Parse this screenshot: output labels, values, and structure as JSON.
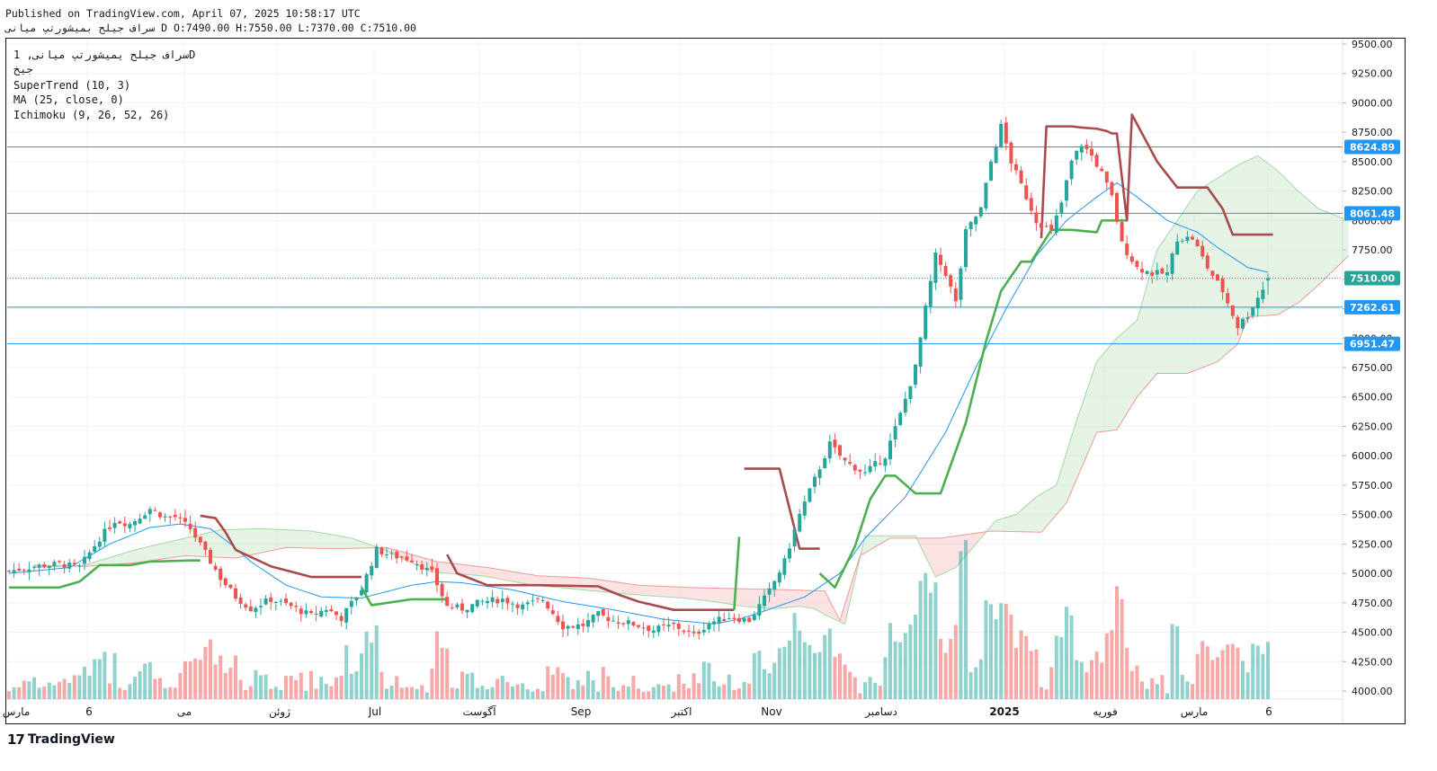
{
  "header": {
    "published": "Published on TradingView.com, April 07, 2025 10:58:17 UTC",
    "symbol_line": "سراف جیلح بمیشورتپ میانی D O:7490.00 H:7550.00 L:7370.00 C:7510.00"
  },
  "legend": {
    "symbol": "سراف جیلح یمیشورتپ میانی, 1D",
    "sub": "جیخ",
    "supertrend": "SuperTrend (10, 3)",
    "ma": "MA (25, close, 0)",
    "ichimoku": "Ichimoku (9, 26, 52, 26)"
  },
  "brand": {
    "logo": "17",
    "name": "TradingView"
  },
  "colors": {
    "up": "#26a69a",
    "down": "#ef5350",
    "supertrend_up": "#4caf50",
    "supertrend_down": "#a94a4d",
    "ma": "#2196f3",
    "hline": "#2196f3",
    "cloud_green": "#a5d6a7",
    "cloud_red": "#ef9a9a"
  },
  "chart_data": {
    "type": "candlestick",
    "timeframe": "1D",
    "last": {
      "open": 7490.0,
      "high": 7550.0,
      "low": 7370.0,
      "close": 7510.0
    },
    "ylim": [
      3900,
      9600
    ],
    "y_ticks": [
      "9500.00",
      "9250.00",
      "9000.00",
      "8750.00",
      "8500.00",
      "8250.00",
      "8000.00",
      "7750.00",
      "7500.00",
      "7250.00",
      "7000.00",
      "6750.00",
      "6500.00",
      "6250.00",
      "6000.00",
      "5750.00",
      "5500.00",
      "5250.00",
      "5000.00",
      "4750.00",
      "4500.00",
      "4250.00",
      "4000.00"
    ],
    "x_ticks": [
      "مارس",
      "6",
      "می",
      "ژوئن",
      "Jul",
      "آگوست",
      "Sep",
      "اکتبر",
      "Nov",
      "دسامبر",
      "2025",
      "فوریه",
      "مارس",
      "6"
    ],
    "bold_x_tick": "2025",
    "price_labels": [
      {
        "value": 8624.89,
        "text": "8624.89"
      },
      {
        "value": 8061.48,
        "text": "8061.48"
      },
      {
        "value": 7510.0,
        "text": "7510.00",
        "current": true
      },
      {
        "value": 7262.61,
        "text": "7262.61"
      },
      {
        "value": 6951.47,
        "text": "6951.47"
      }
    ],
    "horizontal_lines": [
      8624.89,
      8061.48,
      7262.61,
      6951.47
    ],
    "close_anchors": [
      [
        0,
        5020
      ],
      [
        5,
        5060
      ],
      [
        10,
        5080
      ],
      [
        14,
        5050
      ],
      [
        18,
        5300
      ],
      [
        21,
        5450
      ],
      [
        24,
        5420
      ],
      [
        28,
        5550
      ],
      [
        31,
        5480
      ],
      [
        33,
        5480
      ],
      [
        36,
        5380
      ],
      [
        38,
        5240
      ],
      [
        40,
        5100
      ],
      [
        42,
        4960
      ],
      [
        45,
        4800
      ],
      [
        48,
        4700
      ],
      [
        52,
        4780
      ],
      [
        56,
        4720
      ],
      [
        60,
        4640
      ],
      [
        63,
        4700
      ],
      [
        66,
        4620
      ],
      [
        70,
        4870
      ],
      [
        73,
        5200
      ],
      [
        76,
        5150
      ],
      [
        80,
        5120
      ],
      [
        84,
        5000
      ],
      [
        87,
        4720
      ],
      [
        90,
        4700
      ],
      [
        94,
        4760
      ],
      [
        98,
        4780
      ],
      [
        102,
        4720
      ],
      [
        106,
        4780
      ],
      [
        110,
        4550
      ],
      [
        114,
        4560
      ],
      [
        117,
        4650
      ],
      [
        120,
        4600
      ],
      [
        124,
        4570
      ],
      [
        128,
        4520
      ],
      [
        132,
        4560
      ],
      [
        136,
        4470
      ],
      [
        139,
        4580
      ],
      [
        143,
        4630
      ],
      [
        147,
        4600
      ],
      [
        151,
        4850
      ],
      [
        154,
        5100
      ],
      [
        157,
        5500
      ],
      [
        160,
        5800
      ],
      [
        163,
        6100
      ],
      [
        166,
        5950
      ],
      [
        170,
        5850
      ],
      [
        174,
        6000
      ],
      [
        177,
        6350
      ],
      [
        180,
        6750
      ],
      [
        182,
        7250
      ],
      [
        184,
        7700
      ],
      [
        186,
        7550
      ],
      [
        188,
        7300
      ],
      [
        190,
        7900
      ],
      [
        193,
        8100
      ],
      [
        195,
        8500
      ],
      [
        197,
        8800
      ],
      [
        199,
        8500
      ],
      [
        201,
        8300
      ],
      [
        204,
        8000
      ],
      [
        207,
        7900
      ],
      [
        209,
        8150
      ],
      [
        211,
        8500
      ],
      [
        213,
        8650
      ],
      [
        215,
        8550
      ],
      [
        217,
        8400
      ],
      [
        219,
        8200
      ],
      [
        221,
        7800
      ],
      [
        224,
        7600
      ],
      [
        227,
        7550
      ],
      [
        230,
        7550
      ],
      [
        232,
        7850
      ],
      [
        235,
        7850
      ],
      [
        238,
        7600
      ],
      [
        241,
        7400
      ],
      [
        244,
        7100
      ],
      [
        246,
        7200
      ],
      [
        249,
        7420
      ],
      [
        250,
        7510
      ]
    ],
    "supertrend_segments": [
      {
        "dir": "up",
        "points": [
          [
            0,
            4880
          ],
          [
            10,
            4880
          ],
          [
            14,
            4930
          ],
          [
            18,
            5070
          ],
          [
            24,
            5070
          ],
          [
            28,
            5100
          ],
          [
            36,
            5110
          ],
          [
            38,
            5110
          ]
        ]
      },
      {
        "dir": "down",
        "points": [
          [
            38,
            5490
          ],
          [
            41,
            5470
          ],
          [
            43,
            5350
          ],
          [
            45,
            5200
          ],
          [
            49,
            5120
          ],
          [
            52,
            5060
          ],
          [
            60,
            4970
          ],
          [
            70,
            4970
          ]
        ]
      },
      {
        "dir": "up",
        "points": [
          [
            70,
            4880
          ],
          [
            72,
            4730
          ],
          [
            80,
            4780
          ],
          [
            87,
            4780
          ]
        ]
      },
      {
        "dir": "down",
        "points": [
          [
            87,
            5160
          ],
          [
            89,
            5000
          ],
          [
            95,
            4900
          ],
          [
            105,
            4900
          ],
          [
            117,
            4890
          ],
          [
            121,
            4820
          ],
          [
            125,
            4760
          ],
          [
            132,
            4690
          ],
          [
            144,
            4690
          ]
        ]
      },
      {
        "dir": "up",
        "points": [
          [
            144,
            4690
          ],
          [
            145,
            5310
          ]
        ]
      },
      {
        "dir": "down",
        "points": [
          [
            146,
            5890
          ],
          [
            153,
            5890
          ],
          [
            157,
            5210
          ],
          [
            161,
            5210
          ]
        ]
      },
      {
        "dir": "up",
        "points": [
          [
            161,
            5000
          ],
          [
            164,
            4880
          ],
          [
            168,
            5230
          ],
          [
            171,
            5630
          ],
          [
            174,
            5830
          ],
          [
            176,
            5830
          ],
          [
            180,
            5680
          ],
          [
            185,
            5680
          ],
          [
            190,
            6280
          ],
          [
            194,
            6970
          ],
          [
            197,
            7400
          ],
          [
            201,
            7650
          ],
          [
            203,
            7650
          ],
          [
            207,
            7920
          ],
          [
            211,
            7920
          ],
          [
            216,
            7900
          ],
          [
            217,
            8000
          ],
          [
            222,
            8000
          ]
        ]
      },
      {
        "dir": "down",
        "points": [
          [
            205,
            7850
          ],
          [
            206,
            8800
          ],
          [
            211,
            8800
          ],
          [
            213,
            8790
          ],
          [
            216,
            8780
          ],
          [
            218,
            8760
          ],
          [
            219,
            8740
          ],
          [
            220,
            8740
          ],
          [
            222,
            8000
          ],
          [
            223,
            8900
          ],
          [
            228,
            8500
          ],
          [
            232,
            8280
          ],
          [
            238,
            8280
          ],
          [
            241,
            8100
          ],
          [
            243,
            7880
          ],
          [
            251,
            7880
          ]
        ]
      }
    ],
    "ma_anchors": [
      [
        0,
        5000
      ],
      [
        12,
        5050
      ],
      [
        20,
        5250
      ],
      [
        28,
        5390
      ],
      [
        34,
        5420
      ],
      [
        40,
        5380
      ],
      [
        44,
        5250
      ],
      [
        48,
        5100
      ],
      [
        55,
        4900
      ],
      [
        62,
        4800
      ],
      [
        70,
        4790
      ],
      [
        80,
        4900
      ],
      [
        85,
        4930
      ],
      [
        90,
        4920
      ],
      [
        100,
        4860
      ],
      [
        110,
        4760
      ],
      [
        120,
        4690
      ],
      [
        130,
        4610
      ],
      [
        140,
        4570
      ],
      [
        145,
        4610
      ],
      [
        150,
        4680
      ],
      [
        158,
        4800
      ],
      [
        165,
        5000
      ],
      [
        170,
        5300
      ],
      [
        178,
        5650
      ],
      [
        186,
        6200
      ],
      [
        192,
        6750
      ],
      [
        198,
        7250
      ],
      [
        204,
        7700
      ],
      [
        210,
        8000
      ],
      [
        216,
        8200
      ],
      [
        220,
        8320
      ],
      [
        224,
        8200
      ],
      [
        230,
        8000
      ],
      [
        236,
        7900
      ],
      [
        240,
        7770
      ],
      [
        246,
        7600
      ],
      [
        250,
        7560
      ]
    ],
    "cloud_span_a": [
      [
        5,
        5050
      ],
      [
        15,
        5070
      ],
      [
        25,
        5200
      ],
      [
        35,
        5300
      ],
      [
        42,
        5370
      ],
      [
        50,
        5380
      ],
      [
        60,
        5360
      ],
      [
        68,
        5300
      ],
      [
        74,
        5210
      ],
      [
        84,
        5010
      ],
      [
        94,
        4980
      ],
      [
        104,
        4900
      ],
      [
        114,
        4860
      ],
      [
        124,
        4820
      ],
      [
        134,
        4790
      ],
      [
        140,
        4760
      ],
      [
        146,
        4720
      ],
      [
        152,
        4700
      ],
      [
        157,
        4720
      ],
      [
        160,
        4700
      ],
      [
        162,
        4650
      ],
      [
        166,
        4570
      ],
      [
        170,
        5320
      ],
      [
        180,
        5320
      ],
      [
        184,
        4970
      ],
      [
        188,
        5050
      ],
      [
        192,
        5250
      ],
      [
        196,
        5450
      ],
      [
        200,
        5500
      ],
      [
        204,
        5650
      ],
      [
        208,
        5750
      ],
      [
        212,
        6300
      ],
      [
        216,
        6800
      ],
      [
        220,
        7000
      ],
      [
        224,
        7150
      ],
      [
        228,
        7750
      ],
      [
        232,
        8000
      ],
      [
        236,
        8250
      ],
      [
        240,
        8360
      ],
      [
        244,
        8470
      ],
      [
        248,
        8550
      ],
      [
        252,
        8420
      ],
      [
        256,
        8250
      ],
      [
        260,
        8100
      ],
      [
        266,
        8000
      ]
    ],
    "cloud_span_b": [
      [
        5,
        5070
      ],
      [
        15,
        5060
      ],
      [
        25,
        5090
      ],
      [
        35,
        5150
      ],
      [
        45,
        5130
      ],
      [
        55,
        5220
      ],
      [
        65,
        5210
      ],
      [
        75,
        5220
      ],
      [
        85,
        5100
      ],
      [
        95,
        5050
      ],
      [
        105,
        4980
      ],
      [
        115,
        4960
      ],
      [
        125,
        4900
      ],
      [
        135,
        4880
      ],
      [
        145,
        4870
      ],
      [
        155,
        4860
      ],
      [
        162,
        4850
      ],
      [
        165,
        4600
      ],
      [
        169,
        5150
      ],
      [
        175,
        5300
      ],
      [
        185,
        5300
      ],
      [
        195,
        5360
      ],
      [
        205,
        5350
      ],
      [
        210,
        5600
      ],
      [
        216,
        6200
      ],
      [
        220,
        6220
      ],
      [
        224,
        6500
      ],
      [
        228,
        6700
      ],
      [
        234,
        6700
      ],
      [
        240,
        6800
      ],
      [
        244,
        6950
      ],
      [
        246,
        7180
      ],
      [
        252,
        7200
      ],
      [
        256,
        7300
      ],
      [
        260,
        7450
      ],
      [
        266,
        7700
      ]
    ]
  }
}
